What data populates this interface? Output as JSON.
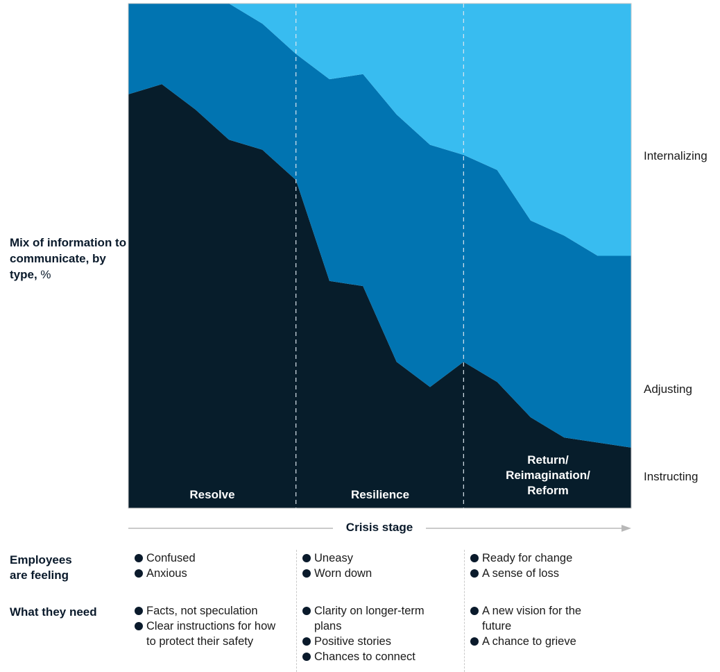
{
  "chart_data": {
    "type": "area",
    "stacked": true,
    "percent": true,
    "x": [
      0,
      1,
      2,
      3,
      4,
      5,
      6,
      7,
      8,
      9,
      10,
      11,
      12,
      13,
      14,
      15
    ],
    "series": [
      {
        "name": "Instructing",
        "color": "#071d2b",
        "values": [
          82,
          84,
          79,
          73,
          71,
          65,
          45,
          44,
          29,
          24,
          29,
          25,
          18,
          14,
          13,
          12
        ]
      },
      {
        "name": "Adjusting",
        "color": "#0174b1",
        "values": [
          18,
          16,
          21,
          27,
          25,
          25,
          40,
          42,
          49,
          48,
          41,
          42,
          39,
          40,
          37,
          38
        ]
      },
      {
        "name": "Internalizing",
        "color": "#38bcf0",
        "values": [
          0,
          0,
          0,
          0,
          4,
          10,
          15,
          14,
          22,
          28,
          30,
          33,
          43,
          46,
          50,
          50
        ]
      }
    ],
    "stages": [
      "Resolve",
      "Resilience",
      [
        "Return/",
        "Reimagination/",
        "Reform"
      ]
    ],
    "stage_boundaries": [
      5,
      10
    ],
    "ylim": [
      0,
      100
    ],
    "xlabel": "Crisis stage",
    "ylabel": {
      "bold": "Mix of information to communicate, by type,",
      "unit": "%"
    }
  },
  "rows": {
    "feeling_label": [
      "Employees",
      "are feeling"
    ],
    "need_label": "What they need",
    "columns": [
      {
        "feeling": [
          "Confused",
          "Anxious"
        ],
        "needs": [
          "Facts, not speculation",
          "Clear instructions for how to protect their safety"
        ]
      },
      {
        "feeling": [
          "Uneasy",
          "Worn down"
        ],
        "needs": [
          "Clarity on longer-term plans",
          "Positive stories",
          "Chances to connect"
        ]
      },
      {
        "feeling": [
          "Ready for change",
          "A sense of loss"
        ],
        "needs": [
          "A new vision for the future",
          "A chance to grieve"
        ]
      }
    ]
  }
}
